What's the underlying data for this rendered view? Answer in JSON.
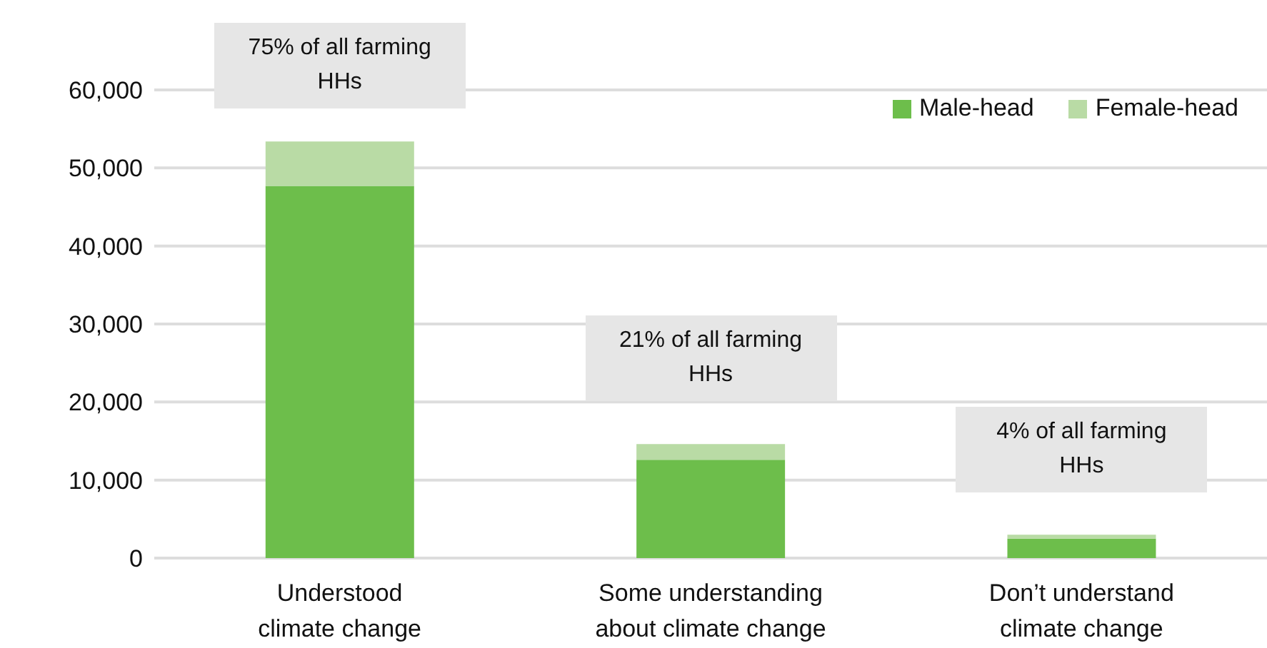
{
  "chart_data": {
    "type": "bar",
    "stacked": true,
    "categories": [
      "Understood climate change",
      "Some understanding about climate change",
      "Don’t understand climate change"
    ],
    "series": [
      {
        "name": "Male-head",
        "color": "#6dbe4b",
        "values": [
          47700,
          12600,
          2500
        ]
      },
      {
        "name": "Female-head",
        "color": "#b9dba5",
        "values": [
          5700,
          2000,
          500
        ]
      }
    ],
    "ylim": [
      0,
      60000
    ],
    "yticks": [
      {
        "value": 0,
        "label": "0"
      },
      {
        "value": 10000,
        "label": "10,000"
      },
      {
        "value": 20000,
        "label": "20,000"
      },
      {
        "value": 30000,
        "label": "30,000"
      },
      {
        "value": 40000,
        "label": "40,000"
      },
      {
        "value": 50000,
        "label": "50,000"
      },
      {
        "value": 60000,
        "label": "60,000"
      }
    ],
    "grid": "y",
    "legend": "top right",
    "annotations": [
      "75% of all farming HHs",
      "21% of all farming HHs",
      "4% of all farming HHs"
    ]
  }
}
